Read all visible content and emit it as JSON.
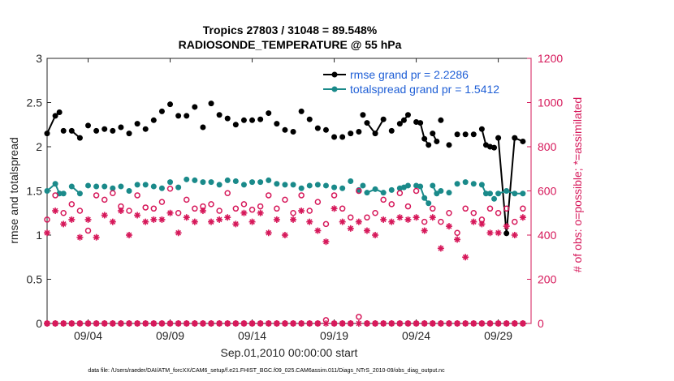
{
  "chart_data": {
    "type": "line",
    "title": "Tropics 27803 / 31048 = 89.548%",
    "subtitle": "RADIOSONDE_TEMPERATURE @ 55 hPa",
    "xlabel": "Sep.01,2010 00:00:00 start",
    "ylabel": "rmse and totalspread",
    "ylabel_right": "# of obs: o=possible; *=assimilated",
    "x_ticks": [
      {
        "day": 4,
        "label": "09/04"
      },
      {
        "day": 9,
        "label": "09/09"
      },
      {
        "day": 14,
        "label": "09/14"
      },
      {
        "day": 19,
        "label": "09/19"
      },
      {
        "day": 24,
        "label": "09/24"
      },
      {
        "day": 29,
        "label": "09/29"
      }
    ],
    "xlim": [
      1.5,
      31.0
    ],
    "ylim": [
      0,
      3
    ],
    "yticks": [
      "0",
      "0.5",
      "1",
      "1.5",
      "2",
      "2.5",
      "3"
    ],
    "ylim_right": [
      0,
      1200
    ],
    "yticks_right": [
      "0",
      "200",
      "400",
      "600",
      "800",
      "1000",
      "1200"
    ],
    "footer": "data file: /Users/raeder/DAI/ATM_forcXX/CAM6_setup/f.e21.FHIST_BGC.f09_025.CAM6assim.011/Diags_NTrS_2010-09/obs_diag_output.nc",
    "series": [
      {
        "name": "rmse grand pr = 2.2286",
        "color": "#000000",
        "x": [
          1.5,
          2.0,
          2.25,
          2.5,
          3.0,
          3.5,
          4.0,
          4.5,
          5.0,
          5.5,
          6.0,
          6.5,
          7.0,
          7.5,
          8.0,
          8.5,
          9.0,
          9.5,
          10.0,
          10.5,
          11.0,
          11.5,
          12.0,
          12.5,
          13.0,
          13.5,
          14.0,
          14.5,
          15.0,
          15.5,
          16.0,
          16.5,
          17.0,
          17.5,
          18.0,
          18.5,
          19.0,
          19.5,
          20.0,
          20.5,
          20.75,
          21.0,
          21.5,
          22.0,
          22.5,
          23.0,
          23.25,
          23.5,
          24.0,
          24.25,
          24.5,
          24.75,
          25.0,
          25.25,
          25.5,
          26.0,
          26.5,
          27.0,
          27.5,
          28.0,
          28.25,
          28.5,
          28.75,
          29.0,
          29.5,
          30.0,
          30.5
        ],
        "values": [
          2.15,
          2.35,
          2.39,
          2.18,
          2.18,
          2.1,
          2.24,
          2.18,
          2.2,
          2.18,
          2.22,
          2.15,
          2.26,
          2.2,
          2.3,
          2.4,
          2.48,
          2.35,
          2.35,
          2.45,
          2.22,
          2.49,
          2.36,
          2.32,
          2.25,
          2.3,
          2.3,
          2.31,
          2.38,
          2.26,
          2.19,
          2.17,
          2.4,
          2.31,
          2.21,
          2.19,
          2.11,
          2.11,
          2.15,
          2.17,
          2.36,
          2.27,
          2.15,
          2.31,
          2.18,
          2.26,
          2.3,
          2.36,
          2.28,
          2.27,
          2.09,
          2.02,
          2.15,
          2.06,
          2.3,
          2.02,
          2.14,
          2.14,
          2.14,
          2.2,
          2.02,
          2.0,
          1.99,
          2.1,
          1.02,
          2.1,
          2.06
        ],
        "gaps_after": [
          2,
          3,
          5,
          6,
          7,
          8,
          9,
          10,
          11,
          12,
          13,
          14,
          15,
          16,
          17,
          18,
          19,
          20,
          21,
          22,
          23,
          24,
          25,
          26,
          27,
          28,
          29,
          30,
          31,
          32,
          33,
          34,
          35,
          36,
          37,
          38,
          39,
          40,
          43,
          44,
          47,
          51,
          53,
          54,
          55,
          56,
          57,
          58,
          61,
          62
        ],
        "marker": "filled-circle"
      },
      {
        "name": "totalspread grand pr = 1.5412",
        "color": "#1a8a8a",
        "x": [
          1.5,
          2.0,
          2.25,
          2.5,
          3.0,
          3.5,
          4.0,
          4.5,
          5.0,
          5.5,
          6.0,
          6.5,
          7.0,
          7.5,
          8.0,
          8.5,
          9.0,
          9.5,
          10.0,
          10.5,
          11.0,
          11.5,
          12.0,
          12.5,
          13.0,
          13.5,
          14.0,
          14.5,
          15.0,
          15.5,
          16.0,
          16.5,
          17.0,
          17.5,
          18.0,
          18.5,
          19.0,
          19.5,
          20.0,
          20.5,
          20.75,
          21.0,
          21.5,
          22.0,
          22.5,
          23.0,
          23.25,
          23.5,
          24.0,
          24.25,
          24.5,
          24.75,
          25.0,
          25.25,
          25.5,
          26.0,
          26.5,
          27.0,
          27.5,
          28.0,
          28.25,
          28.5,
          28.75,
          29.0,
          29.5,
          30.0,
          30.5
        ],
        "values": [
          1.5,
          1.58,
          1.47,
          1.47,
          1.55,
          1.47,
          1.56,
          1.55,
          1.55,
          1.53,
          1.55,
          1.5,
          1.57,
          1.57,
          1.55,
          1.53,
          1.6,
          1.54,
          1.63,
          1.62,
          1.6,
          1.6,
          1.57,
          1.62,
          1.61,
          1.57,
          1.6,
          1.6,
          1.62,
          1.58,
          1.57,
          1.57,
          1.53,
          1.56,
          1.57,
          1.56,
          1.54,
          1.53,
          1.61,
          1.51,
          1.56,
          1.48,
          1.52,
          1.48,
          1.51,
          1.53,
          1.54,
          1.56,
          1.56,
          1.55,
          1.42,
          1.36,
          1.56,
          1.47,
          1.5,
          1.48,
          1.58,
          1.6,
          1.58,
          1.57,
          1.47,
          1.47,
          1.41,
          1.47,
          1.5,
          1.47,
          1.47
        ],
        "gaps_after": [
          2,
          3,
          5,
          6,
          7,
          8,
          9,
          10,
          11,
          12,
          13,
          14,
          15,
          16,
          17,
          18,
          19,
          20,
          21,
          22,
          23,
          24,
          25,
          26,
          27,
          28,
          29,
          30,
          31,
          32,
          33,
          34,
          35,
          36,
          37,
          38,
          39,
          40,
          43,
          44,
          47,
          51,
          53,
          54,
          55,
          56,
          57,
          58,
          61,
          62
        ],
        "marker": "filled-circle"
      },
      {
        "name": "possible",
        "axis": "right",
        "color": "#d6185a",
        "marker": "open-circle",
        "x": [
          1.5,
          2.0,
          2.5,
          3.0,
          3.5,
          4.0,
          4.5,
          5.0,
          5.5,
          6.0,
          6.5,
          7.0,
          7.5,
          8.0,
          8.5,
          9.0,
          9.5,
          10.0,
          10.5,
          11.0,
          11.5,
          12.0,
          12.5,
          13.0,
          13.5,
          14.0,
          14.5,
          15.0,
          15.5,
          16.0,
          16.5,
          17.0,
          17.5,
          18.0,
          18.5,
          19.0,
          19.5,
          20.0,
          20.5,
          21.0,
          21.5,
          22.0,
          22.5,
          23.0,
          23.5,
          24.0,
          24.5,
          25.0,
          25.5,
          26.0,
          26.5,
          27.0,
          27.5,
          28.0,
          28.5,
          29.0,
          29.5,
          30.0,
          30.5
        ],
        "values": [
          470,
          580,
          500,
          540,
          510,
          420,
          580,
          560,
          590,
          530,
          510,
          580,
          525,
          520,
          550,
          610,
          500,
          560,
          520,
          530,
          540,
          510,
          590,
          520,
          540,
          515,
          530,
          580,
          520,
          560,
          500,
          580,
          510,
          550,
          450,
          580,
          520,
          480,
          600,
          480,
          500,
          560,
          540,
          590,
          530,
          600,
          460,
          520,
          460,
          500,
          410,
          520,
          500,
          470,
          520,
          500,
          520,
          460,
          520
        ],
        "baseline": [
          0,
          0,
          0,
          0,
          0,
          0,
          0,
          0,
          0,
          0,
          0,
          0,
          0,
          0,
          0,
          0,
          0,
          0,
          0,
          0,
          0,
          0,
          0,
          0,
          0,
          0,
          0,
          0,
          0,
          0,
          0,
          0,
          0,
          0,
          15,
          0,
          0,
          0,
          30,
          0,
          0,
          0,
          0,
          0,
          0,
          0,
          0,
          0,
          0,
          0,
          0,
          0,
          0,
          0,
          0,
          0,
          0,
          0,
          0
        ]
      },
      {
        "name": "assimilated",
        "axis": "right",
        "color": "#d6185a",
        "marker": "asterisk",
        "x": [
          1.5,
          2.0,
          2.5,
          3.0,
          3.5,
          4.0,
          4.5,
          5.0,
          5.5,
          6.0,
          6.5,
          7.0,
          7.5,
          8.0,
          8.5,
          9.0,
          9.5,
          10.0,
          10.5,
          11.0,
          11.5,
          12.0,
          12.5,
          13.0,
          13.5,
          14.0,
          14.5,
          15.0,
          15.5,
          16.0,
          16.5,
          17.0,
          17.5,
          18.0,
          18.5,
          19.0,
          19.5,
          20.0,
          20.5,
          21.0,
          21.5,
          22.0,
          22.5,
          23.0,
          23.5,
          24.0,
          24.5,
          25.0,
          25.5,
          26.0,
          26.5,
          27.0,
          27.5,
          28.0,
          28.5,
          29.0,
          29.5,
          30.0,
          30.5
        ],
        "values": [
          410,
          510,
          450,
          470,
          390,
          470,
          390,
          490,
          460,
          510,
          400,
          490,
          460,
          470,
          470,
          500,
          410,
          480,
          460,
          510,
          460,
          470,
          480,
          450,
          500,
          460,
          500,
          410,
          470,
          400,
          470,
          510,
          460,
          420,
          370,
          520,
          460,
          430,
          460,
          420,
          400,
          470,
          460,
          480,
          470,
          480,
          420,
          480,
          340,
          440,
          380,
          300,
          460,
          450,
          410,
          410,
          440,
          400,
          480
        ]
      }
    ]
  }
}
